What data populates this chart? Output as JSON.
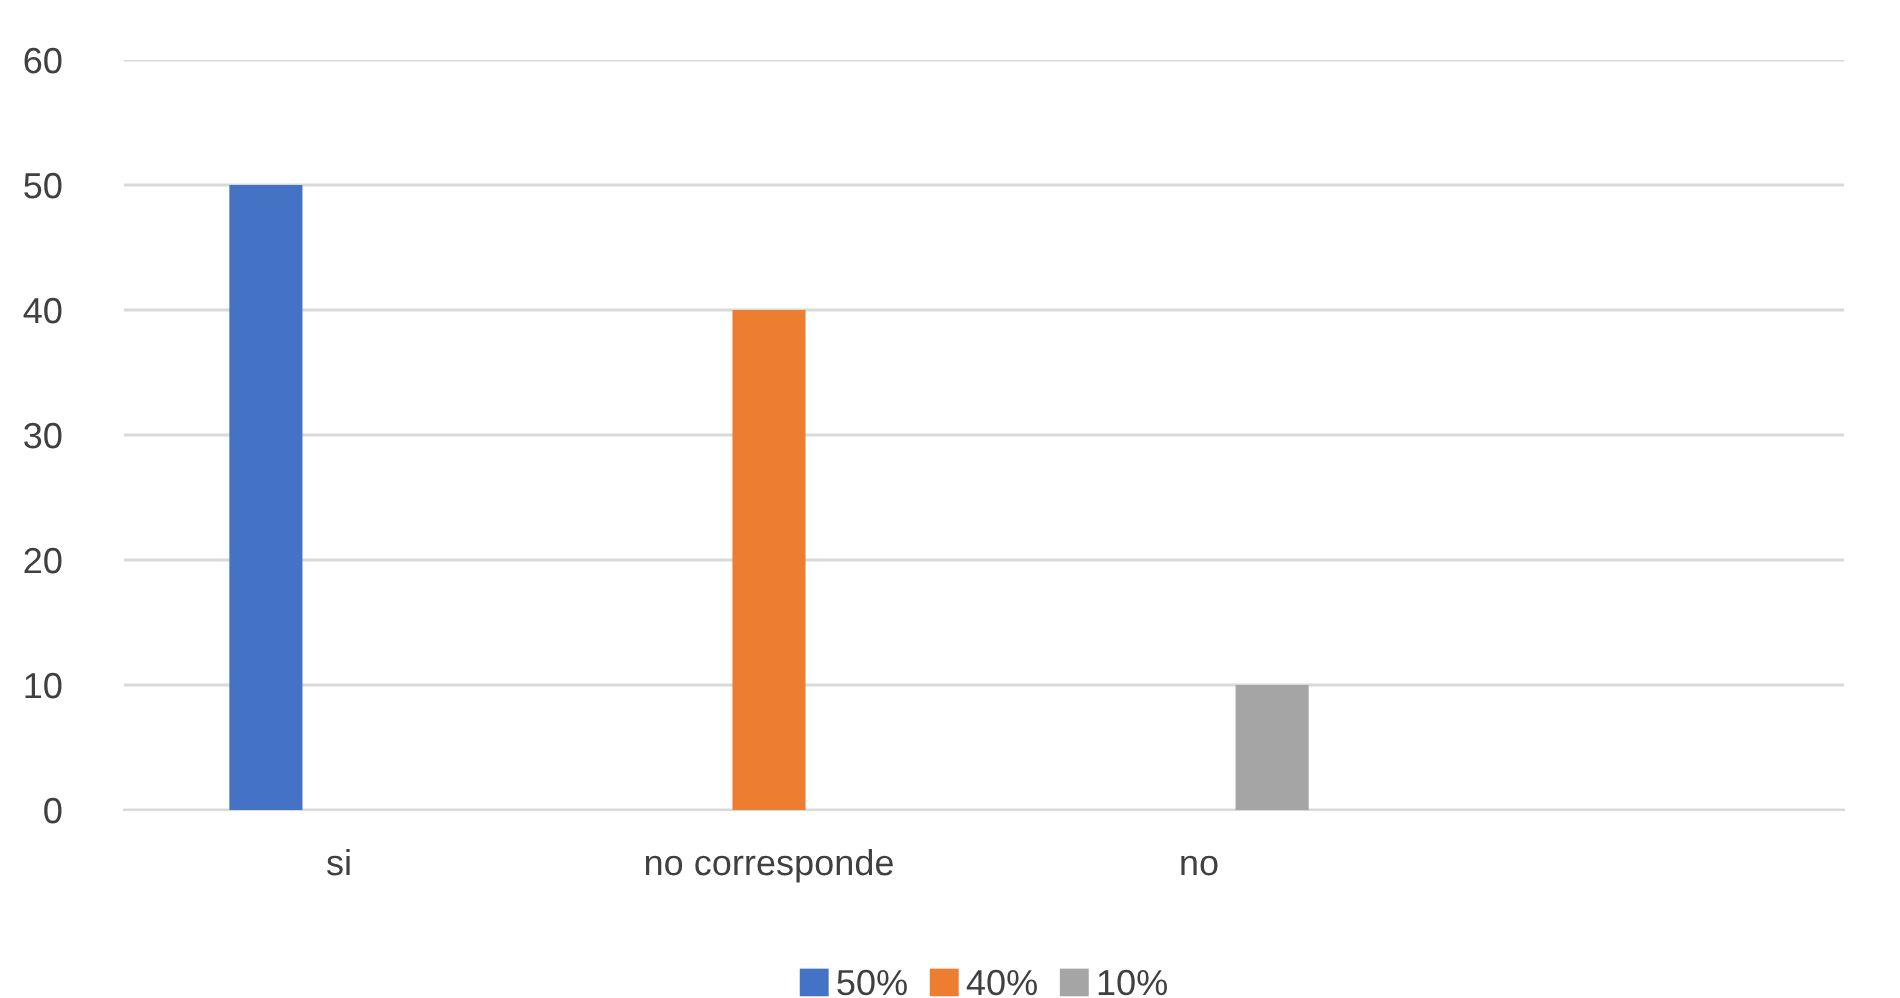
{
  "chart_data": {
    "type": "bar",
    "categories": [
      "si",
      "no corresponde",
      "no",
      null
    ],
    "series": [
      {
        "name": "50%",
        "color": "#4472c4",
        "values": [
          50,
          null,
          null,
          null
        ]
      },
      {
        "name": "40%",
        "color": "#ed7d31",
        "values": [
          null,
          40,
          null,
          null
        ]
      },
      {
        "name": "10%",
        "color": "#a5a5a5",
        "values": [
          null,
          null,
          10,
          null
        ]
      }
    ],
    "ylim": [
      0,
      60
    ],
    "yticks": [
      0,
      10,
      20,
      30,
      40,
      50,
      60
    ],
    "grid": "y",
    "legend": "bottom"
  }
}
